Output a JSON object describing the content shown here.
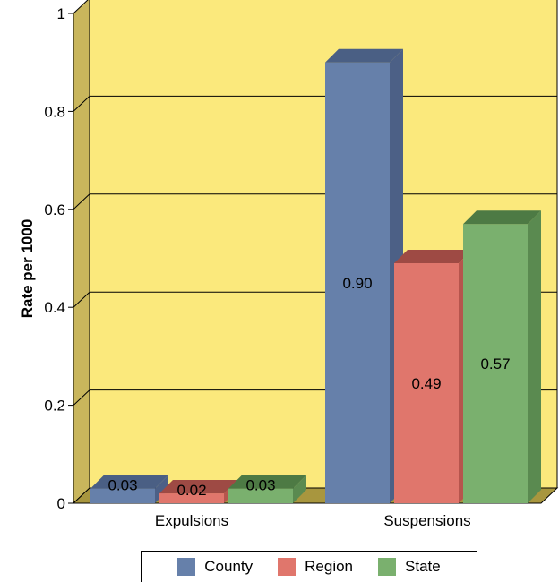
{
  "chart_data": {
    "type": "bar",
    "title": "",
    "xlabel": "",
    "ylabel": "Rate per 1000",
    "ylim": [
      0,
      1
    ],
    "yticks": [
      "0",
      "0.2",
      "0.4",
      "0.6",
      "0.8",
      "1"
    ],
    "categories": [
      "Expulsions",
      "Suspensions"
    ],
    "series": [
      {
        "name": "County",
        "values": [
          0.03,
          0.9
        ],
        "labels": [
          "0.03",
          "0.90"
        ],
        "color": "#6680aa",
        "top": "#4a5f84",
        "side": "#4c6086"
      },
      {
        "name": "Region",
        "values": [
          0.02,
          0.49
        ],
        "labels": [
          "0.02",
          "0.49"
        ],
        "color": "#e0766c",
        "top": "#9e4a44",
        "side": "#b6554d"
      },
      {
        "name": "State",
        "values": [
          0.03,
          0.57
        ],
        "labels": [
          "0.03",
          "0.57"
        ],
        "color": "#7ab06e",
        "top": "#4d7a44",
        "side": "#5a8a50"
      }
    ],
    "grid": true,
    "legend": "bottom",
    "colors": {
      "plot_background": "#fbe97c",
      "wall_side": "#c9b65c",
      "floor": "#a8963e"
    }
  }
}
